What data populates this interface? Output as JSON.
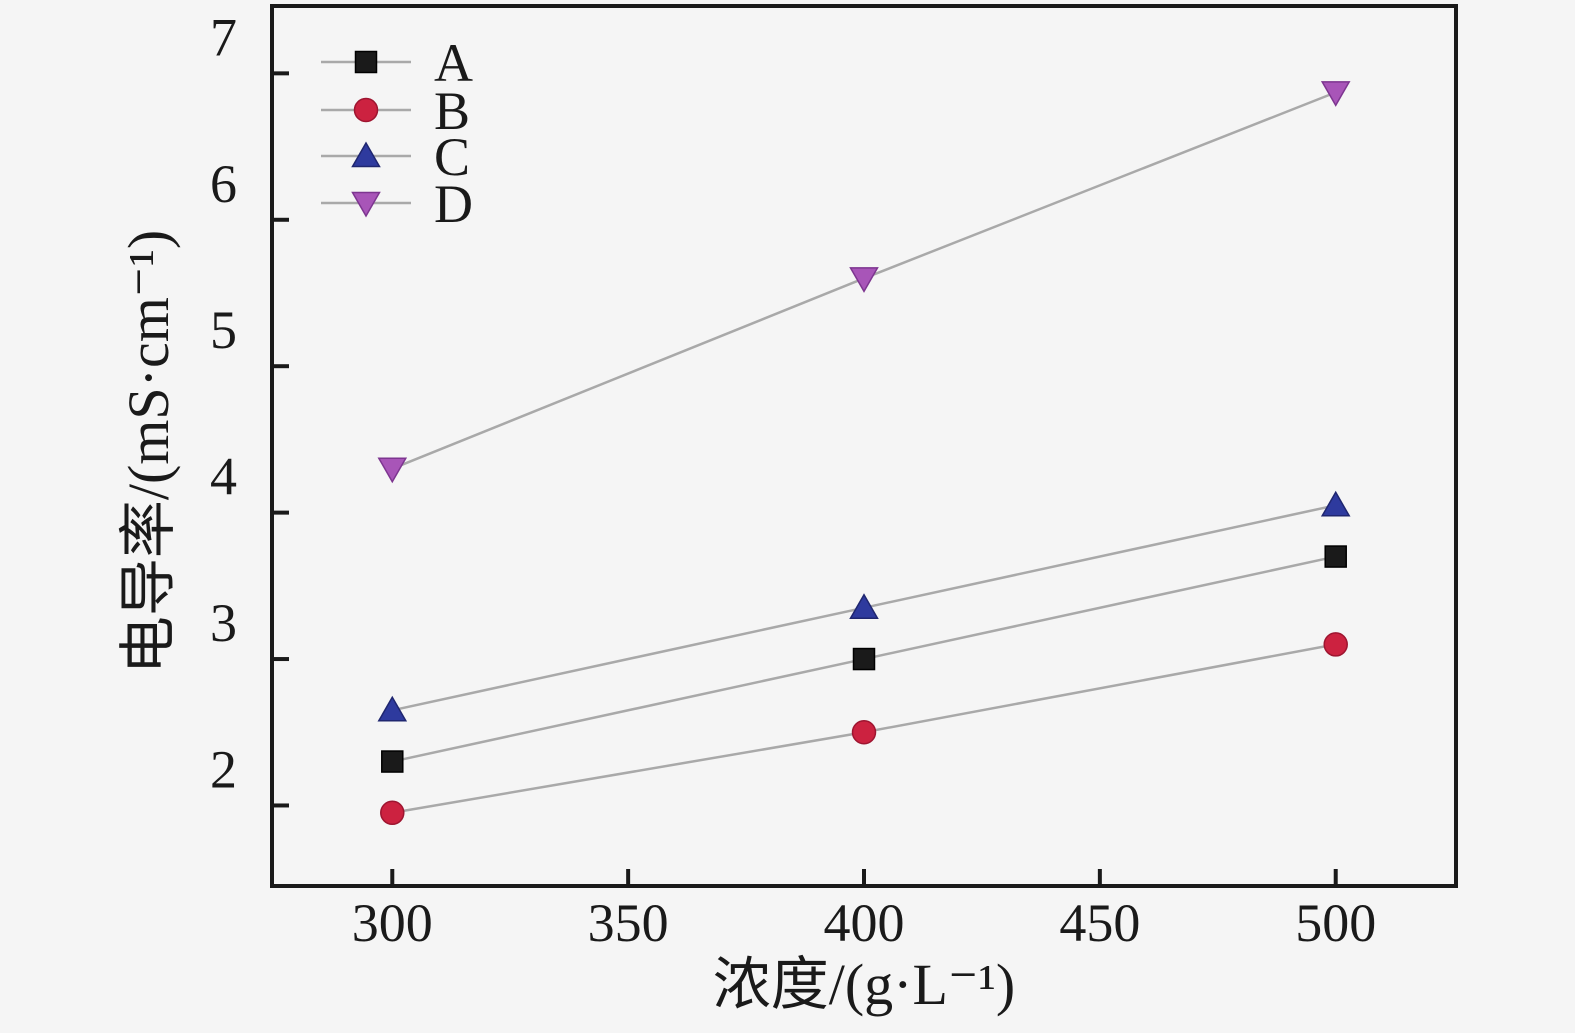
{
  "figure": {
    "background": "#f5f5f5",
    "axis_color": "#1a1a1a",
    "line_color": "#a9a9a9"
  },
  "chart_data": {
    "type": "line",
    "title": "",
    "xlabel": "浓度/(g·L⁻¹)",
    "ylabel": "电导率/(mS·cm⁻¹)",
    "x": [
      300,
      400,
      500
    ],
    "x_ticks": [
      300,
      350,
      400,
      450,
      500
    ],
    "x_tick_labels": [
      "300",
      "350",
      "400",
      "450",
      "500"
    ],
    "y_ticks": [
      2,
      3,
      4,
      5,
      6,
      7
    ],
    "y_tick_labels": [
      "2",
      "3",
      "4",
      "5",
      "6",
      "7"
    ],
    "xlim": [
      274.5,
      525.5
    ],
    "ylim": [
      1.45,
      7.46
    ],
    "grid": false,
    "legend_position": "top-left",
    "legend": [
      "A",
      "B",
      "C",
      "D"
    ],
    "series": [
      {
        "name": "A",
        "marker": "square",
        "color": "#1a1a1a",
        "edge_color": "#000000",
        "values": [
          2.3,
          3.0,
          3.7
        ]
      },
      {
        "name": "B",
        "marker": "circle",
        "color": "#cc2240",
        "edge_color": "#9e1530",
        "values": [
          1.95,
          2.5,
          3.1
        ]
      },
      {
        "name": "C",
        "marker": "triangle-up",
        "color": "#2e3a9e",
        "edge_color": "#1f2670",
        "values": [
          2.65,
          3.35,
          4.05
        ]
      },
      {
        "name": "D",
        "marker": "triangle-down",
        "color": "#a855b8",
        "edge_color": "#7d3590",
        "values": [
          4.3,
          5.6,
          6.87
        ]
      }
    ]
  }
}
